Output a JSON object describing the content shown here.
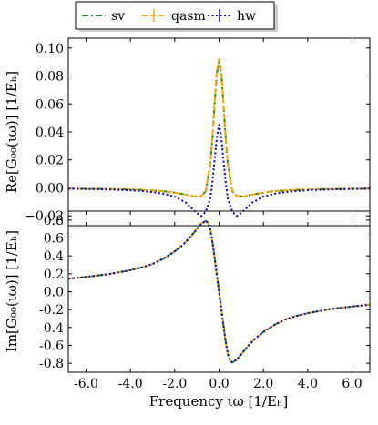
{
  "legend": {
    "entries": [
      {
        "name": "sv",
        "color": "#1a8a1a",
        "dash": "dashdot"
      },
      {
        "name": "qasm",
        "color": "#ffa500",
        "dash": "dashed-cross"
      },
      {
        "name": "hw",
        "color": "#0000cc",
        "dash": "dotted"
      }
    ],
    "placement": "top-center, outside"
  },
  "chart_data": [
    {
      "type": "line",
      "ylabel": "Re[G₀₀(ιω)] [1/Eₕ]",
      "xlabel": "",
      "xlim": [
        -6.8,
        6.8
      ],
      "ylim": [
        -0.027,
        0.107
      ],
      "xticks": [
        -6.0,
        -4.0,
        -2.0,
        0.0,
        2.0,
        4.0,
        6.0
      ],
      "yticks": [
        -0.02,
        0.0,
        0.02,
        0.04,
        0.06,
        0.08,
        0.1
      ],
      "ytick_labels": [
        "−0.02",
        "0.00",
        "0.02",
        "0.04",
        "0.06",
        "0.08",
        "0.10"
      ],
      "grid": false,
      "series": [
        {
          "name": "sv",
          "color": "#1a8a1a",
          "x": [
            -6.8,
            -6.0,
            -5.0,
            -4.0,
            -3.5,
            -3.0,
            -2.5,
            -2.0,
            -1.5,
            -1.2,
            -1.0,
            -0.8,
            -0.6,
            -0.4,
            -0.3,
            -0.2,
            -0.1,
            0.0,
            0.1,
            0.2,
            0.3,
            0.4,
            0.6,
            0.8,
            1.0,
            1.2,
            1.5,
            2.0,
            2.5,
            3.0,
            3.5,
            4.0,
            5.0,
            6.0,
            6.8
          ],
          "y": [
            -0.0005,
            -0.0006,
            -0.0008,
            -0.0011,
            -0.0014,
            -0.0018,
            -0.0024,
            -0.0034,
            -0.0048,
            -0.0058,
            -0.0062,
            -0.0058,
            -0.0025,
            0.016,
            0.035,
            0.06,
            0.082,
            0.09,
            0.082,
            0.06,
            0.035,
            0.016,
            -0.0025,
            -0.0058,
            -0.0062,
            -0.0058,
            -0.0048,
            -0.0034,
            -0.0024,
            -0.0018,
            -0.0014,
            -0.0011,
            -0.0008,
            -0.0006,
            -0.0005
          ]
        },
        {
          "name": "qasm",
          "color": "#ffa500",
          "x": [
            -6.8,
            -6.0,
            -5.0,
            -4.0,
            -3.5,
            -3.0,
            -2.5,
            -2.0,
            -1.5,
            -1.2,
            -1.0,
            -0.8,
            -0.6,
            -0.4,
            -0.3,
            -0.2,
            -0.1,
            0.0,
            0.1,
            0.2,
            0.3,
            0.4,
            0.6,
            0.8,
            1.0,
            1.2,
            1.5,
            2.0,
            2.5,
            3.0,
            3.5,
            4.0,
            5.0,
            6.0,
            6.8
          ],
          "y": [
            -0.0005,
            -0.0006,
            -0.0008,
            -0.0011,
            -0.0014,
            -0.0018,
            -0.0024,
            -0.0034,
            -0.0048,
            -0.0058,
            -0.0062,
            -0.0058,
            -0.0024,
            0.017,
            0.036,
            0.061,
            0.084,
            0.092,
            0.084,
            0.061,
            0.036,
            0.017,
            -0.0024,
            -0.0058,
            -0.0062,
            -0.0058,
            -0.0048,
            -0.0034,
            -0.0024,
            -0.0018,
            -0.0014,
            -0.0011,
            -0.0008,
            -0.0006,
            -0.0005
          ]
        },
        {
          "name": "hw",
          "color": "#0000cc",
          "x": [
            -6.8,
            -6.0,
            -5.0,
            -4.0,
            -3.5,
            -3.0,
            -2.5,
            -2.0,
            -1.5,
            -1.2,
            -1.0,
            -0.8,
            -0.6,
            -0.4,
            -0.3,
            -0.2,
            -0.1,
            0.0,
            0.1,
            0.2,
            0.3,
            0.4,
            0.6,
            0.8,
            1.0,
            1.2,
            1.5,
            2.0,
            2.5,
            3.0,
            3.5,
            4.0,
            5.0,
            6.0,
            6.8
          ],
          "y": [
            -0.0006,
            -0.0008,
            -0.0011,
            -0.0017,
            -0.0022,
            -0.003,
            -0.0042,
            -0.0062,
            -0.0105,
            -0.015,
            -0.018,
            -0.02,
            -0.017,
            -0.008,
            0.004,
            0.02,
            0.036,
            0.045,
            0.036,
            0.02,
            0.004,
            -0.008,
            -0.017,
            -0.02,
            -0.018,
            -0.015,
            -0.0105,
            -0.0062,
            -0.0042,
            -0.003,
            -0.0022,
            -0.0017,
            -0.0011,
            -0.0008,
            -0.0006
          ]
        }
      ]
    },
    {
      "type": "line",
      "ylabel": "Im[G₀₀(ιω)] [1/Eₕ]",
      "xlabel": "Frequency ιω [1/Eₕ]",
      "xlim": [
        -6.8,
        6.8
      ],
      "ylim": [
        -0.9,
        0.9
      ],
      "xticks": [
        -6.0,
        -4.0,
        -2.0,
        0.0,
        2.0,
        4.0,
        6.0
      ],
      "xtick_labels": [
        "-6.0",
        "-4.0",
        "-2.0",
        "0.0",
        "2.0",
        "4.0",
        "6.0"
      ],
      "yticks": [
        -0.8,
        -0.6,
        -0.4,
        -0.2,
        0.0,
        0.2,
        0.4,
        0.6,
        0.8
      ],
      "ytick_labels": [
        "-0.8",
        "-0.6",
        "-0.4",
        "-0.2",
        "0.0",
        "0.2",
        "0.4",
        "0.6",
        "0.8"
      ],
      "grid": false,
      "series": [
        {
          "name": "sv",
          "color": "#1a8a1a",
          "x": [
            -6.8,
            -6.0,
            -5.0,
            -4.0,
            -3.5,
            -3.0,
            -2.5,
            -2.0,
            -1.6,
            -1.3,
            -1.0,
            -0.8,
            -0.6,
            -0.5,
            -0.4,
            -0.3,
            -0.2,
            -0.1,
            0.0,
            0.1,
            0.2,
            0.3,
            0.4,
            0.5,
            0.6,
            0.8,
            1.0,
            1.3,
            1.6,
            2.0,
            2.5,
            3.0,
            3.5,
            4.0,
            5.0,
            6.0,
            6.8
          ],
          "y": [
            0.145,
            0.165,
            0.195,
            0.24,
            0.27,
            0.31,
            0.37,
            0.45,
            0.53,
            0.61,
            0.7,
            0.76,
            0.79,
            0.77,
            0.7,
            0.56,
            0.38,
            0.19,
            0.0,
            -0.19,
            -0.38,
            -0.56,
            -0.7,
            -0.77,
            -0.79,
            -0.76,
            -0.7,
            -0.61,
            -0.53,
            -0.45,
            -0.37,
            -0.31,
            -0.27,
            -0.24,
            -0.195,
            -0.165,
            -0.145
          ]
        },
        {
          "name": "qasm",
          "color": "#ffa500",
          "x": [
            -6.8,
            -6.0,
            -5.0,
            -4.0,
            -3.5,
            -3.0,
            -2.5,
            -2.0,
            -1.6,
            -1.3,
            -1.0,
            -0.8,
            -0.6,
            -0.5,
            -0.4,
            -0.3,
            -0.2,
            -0.1,
            0.0,
            0.1,
            0.2,
            0.3,
            0.4,
            0.5,
            0.6,
            0.8,
            1.0,
            1.3,
            1.6,
            2.0,
            2.5,
            3.0,
            3.5,
            4.0,
            5.0,
            6.0,
            6.8
          ],
          "y": [
            0.145,
            0.165,
            0.195,
            0.24,
            0.27,
            0.31,
            0.37,
            0.45,
            0.53,
            0.61,
            0.7,
            0.76,
            0.79,
            0.77,
            0.7,
            0.56,
            0.38,
            0.19,
            0.0,
            -0.19,
            -0.38,
            -0.56,
            -0.7,
            -0.77,
            -0.79,
            -0.76,
            -0.7,
            -0.61,
            -0.53,
            -0.45,
            -0.37,
            -0.31,
            -0.27,
            -0.24,
            -0.195,
            -0.165,
            -0.145
          ]
        },
        {
          "name": "hw",
          "color": "#0000cc",
          "x": [
            -6.8,
            -6.0,
            -5.0,
            -4.0,
            -3.5,
            -3.0,
            -2.5,
            -2.0,
            -1.6,
            -1.3,
            -1.0,
            -0.8,
            -0.6,
            -0.5,
            -0.4,
            -0.3,
            -0.2,
            -0.1,
            0.0,
            0.1,
            0.2,
            0.3,
            0.4,
            0.5,
            0.6,
            0.8,
            1.0,
            1.3,
            1.6,
            2.0,
            2.5,
            3.0,
            3.5,
            4.0,
            5.0,
            6.0,
            6.8
          ],
          "y": [
            0.145,
            0.165,
            0.195,
            0.24,
            0.27,
            0.31,
            0.37,
            0.45,
            0.53,
            0.61,
            0.7,
            0.76,
            0.79,
            0.77,
            0.7,
            0.56,
            0.38,
            0.19,
            0.0,
            -0.19,
            -0.38,
            -0.56,
            -0.7,
            -0.77,
            -0.79,
            -0.76,
            -0.7,
            -0.61,
            -0.53,
            -0.45,
            -0.37,
            -0.31,
            -0.27,
            -0.24,
            -0.195,
            -0.165,
            -0.145
          ]
        }
      ]
    }
  ]
}
